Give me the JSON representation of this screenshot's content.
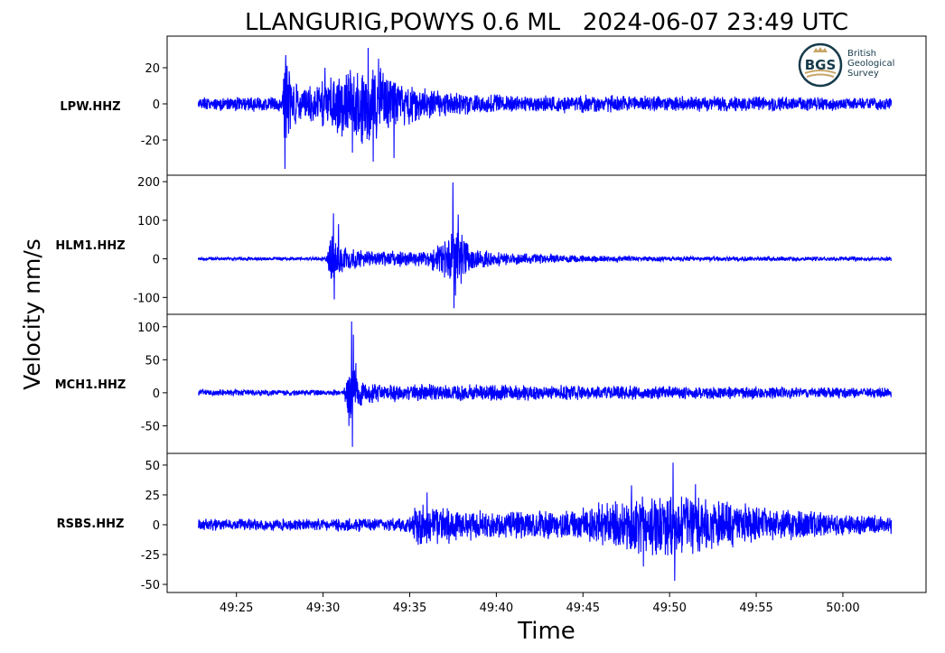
{
  "chart_data": {
    "type": "line",
    "title": "LLANGURIG,POWYS 0.6 ML   2024-06-07 23:49 UTC",
    "xlabel": "Time",
    "ylabel": "Velocity nm/s",
    "x_ticks": [
      "49:25",
      "49:30",
      "49:35",
      "49:40",
      "49:45",
      "49:50",
      "49:55",
      "50:00"
    ],
    "x_tick_seconds": [
      25,
      30,
      35,
      40,
      45,
      50,
      55,
      60
    ],
    "xlim_seconds": [
      21,
      64.8
    ],
    "data_start_seconds": 22.8,
    "data_end_seconds": 62.8,
    "line_color": "#0000ff",
    "grid": false,
    "legend": "none",
    "panels": [
      {
        "station": "LPW.HHZ",
        "ylim": [
          -37,
          35
        ],
        "y_ticks": [
          20,
          0,
          -20
        ],
        "y_tick_labels": [
          "20",
          "0",
          "-20"
        ],
        "envelope": [
          [
            22.8,
            4
          ],
          [
            27.6,
            5
          ],
          [
            27.8,
            36
          ],
          [
            28.2,
            14
          ],
          [
            29.5,
            12
          ],
          [
            31.0,
            22
          ],
          [
            32.5,
            28
          ],
          [
            33.5,
            22
          ],
          [
            34.5,
            15
          ],
          [
            36.5,
            9
          ],
          [
            40,
            6
          ],
          [
            45,
            6
          ],
          [
            50,
            5
          ],
          [
            56,
            5
          ],
          [
            62.8,
            4
          ]
        ],
        "peaks": [
          [
            27.8,
            -36
          ],
          [
            27.85,
            27
          ],
          [
            32.6,
            31
          ],
          [
            32.9,
            -32
          ],
          [
            33.2,
            25
          ],
          [
            34.1,
            -30
          ],
          [
            31.7,
            -27
          ],
          [
            30.1,
            20
          ]
        ]
      },
      {
        "station": "HLM1.HHZ",
        "ylim": [
          -132,
          205
        ],
        "y_ticks": [
          200,
          100,
          0,
          -100
        ],
        "y_tick_labels": [
          "200",
          "100",
          "0",
          "-100"
        ],
        "envelope": [
          [
            22.8,
            5
          ],
          [
            30.2,
            5
          ],
          [
            30.4,
            80
          ],
          [
            31.0,
            45
          ],
          [
            32.5,
            25
          ],
          [
            36.0,
            22
          ],
          [
            37.0,
            60
          ],
          [
            37.6,
            120
          ],
          [
            38.5,
            35
          ],
          [
            40,
            22
          ],
          [
            44,
            12
          ],
          [
            48,
            8
          ],
          [
            55,
            7
          ],
          [
            62.8,
            6
          ]
        ],
        "peaks": [
          [
            30.6,
            118
          ],
          [
            30.65,
            -105
          ],
          [
            30.9,
            90
          ],
          [
            37.5,
            198
          ],
          [
            37.55,
            -128
          ],
          [
            37.8,
            115
          ],
          [
            37.65,
            -95
          ]
        ]
      },
      {
        "station": "MCH1.HHZ",
        "ylim": [
          -85,
          112
        ],
        "y_ticks": [
          100,
          50,
          0,
          -50
        ],
        "y_tick_labels": [
          "100",
          "50",
          "0",
          "-50"
        ],
        "envelope": [
          [
            22.8,
            6
          ],
          [
            31.2,
            5
          ],
          [
            31.5,
            70
          ],
          [
            32.0,
            30
          ],
          [
            33.0,
            16
          ],
          [
            38,
            15
          ],
          [
            45,
            13
          ],
          [
            50,
            12
          ],
          [
            55,
            11
          ],
          [
            62.8,
            9
          ]
        ],
        "peaks": [
          [
            31.65,
            108
          ],
          [
            31.7,
            -82
          ],
          [
            31.9,
            45
          ],
          [
            31.75,
            88
          ]
        ]
      },
      {
        "station": "RSBS.HHZ",
        "ylim": [
          -53,
          56
        ],
        "y_ticks": [
          50,
          25,
          0,
          -25,
          -50
        ],
        "y_tick_labels": [
          "50",
          "25",
          "0",
          "-25",
          "-50"
        ],
        "envelope": [
          [
            22.8,
            6
          ],
          [
            30,
            6
          ],
          [
            34.8,
            7
          ],
          [
            35.5,
            22
          ],
          [
            36.5,
            18
          ],
          [
            40,
            14
          ],
          [
            44,
            14
          ],
          [
            47,
            24
          ],
          [
            50,
            32
          ],
          [
            53,
            24
          ],
          [
            56,
            16
          ],
          [
            60,
            11
          ],
          [
            62.8,
            9
          ]
        ],
        "peaks": [
          [
            50.2,
            52
          ],
          [
            50.3,
            -47
          ],
          [
            48.5,
            -35
          ],
          [
            51.5,
            34
          ],
          [
            36,
            27
          ],
          [
            47.8,
            33
          ]
        ]
      }
    ]
  },
  "logo": {
    "text": "BGS",
    "lines": [
      "British",
      "Geological",
      "Survey"
    ],
    "color": "#163a4a",
    "accent": "#c8a668"
  }
}
